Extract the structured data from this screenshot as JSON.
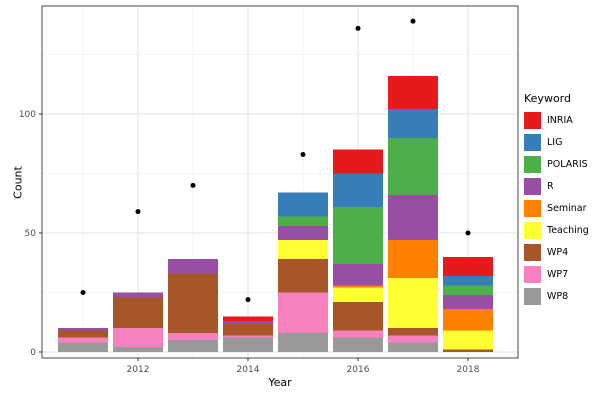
{
  "chart_data": {
    "type": "bar",
    "stacked": true,
    "xlabel": "Year",
    "ylabel": "Count",
    "legend_title": "Keyword",
    "legend_position": "right",
    "grid": true,
    "x": [
      2011,
      2012,
      2013,
      2014,
      2015,
      2016,
      2017,
      2018
    ],
    "xticks": [
      2012,
      2014,
      2016,
      2018
    ],
    "yticks": [
      0,
      50,
      100
    ],
    "yminor": [
      25,
      75,
      125
    ],
    "xminor": [
      2011,
      2013,
      2015,
      2017
    ],
    "ylim": [
      -3,
      146
    ],
    "series": [
      {
        "name": "INRIA",
        "color": "#E41A1C",
        "values": [
          0,
          0,
          0,
          2,
          0,
          10,
          14,
          8
        ]
      },
      {
        "name": "LIG",
        "color": "#377EB8",
        "values": [
          0,
          0,
          0,
          0,
          10,
          14,
          12,
          4
        ]
      },
      {
        "name": "POLARIS",
        "color": "#4DAF4A",
        "values": [
          0,
          0,
          0,
          0,
          4,
          24,
          24,
          4
        ]
      },
      {
        "name": "R",
        "color": "#984EA3",
        "values": [
          1,
          2,
          6,
          1,
          6,
          9,
          19,
          6
        ]
      },
      {
        "name": "Seminar",
        "color": "#FF7F00",
        "values": [
          0,
          0,
          0,
          0,
          0,
          1,
          16,
          9
        ]
      },
      {
        "name": "Teaching",
        "color": "#FFFF33",
        "values": [
          0,
          0,
          0,
          0,
          8,
          6,
          21,
          8
        ]
      },
      {
        "name": "WP4",
        "color": "#A65628",
        "values": [
          3,
          13,
          25,
          5,
          14,
          12,
          3,
          1
        ]
      },
      {
        "name": "WP7",
        "color": "#F781BF",
        "values": [
          2,
          8,
          3,
          1,
          17,
          3,
          3,
          0
        ]
      },
      {
        "name": "WP8",
        "color": "#999999",
        "values": [
          4,
          2,
          5,
          6,
          8,
          6,
          4,
          0
        ]
      }
    ],
    "points": {
      "name": "yearly-dot-series",
      "color": "#000000",
      "values": [
        25,
        59,
        70,
        22,
        83,
        136,
        139,
        50
      ]
    },
    "panel": {
      "background": "#FFFFFF",
      "border_color": "#4A4A4A",
      "grid_major_color": "#E8E8E8",
      "grid_minor_color": "#F2F2F2"
    }
  }
}
